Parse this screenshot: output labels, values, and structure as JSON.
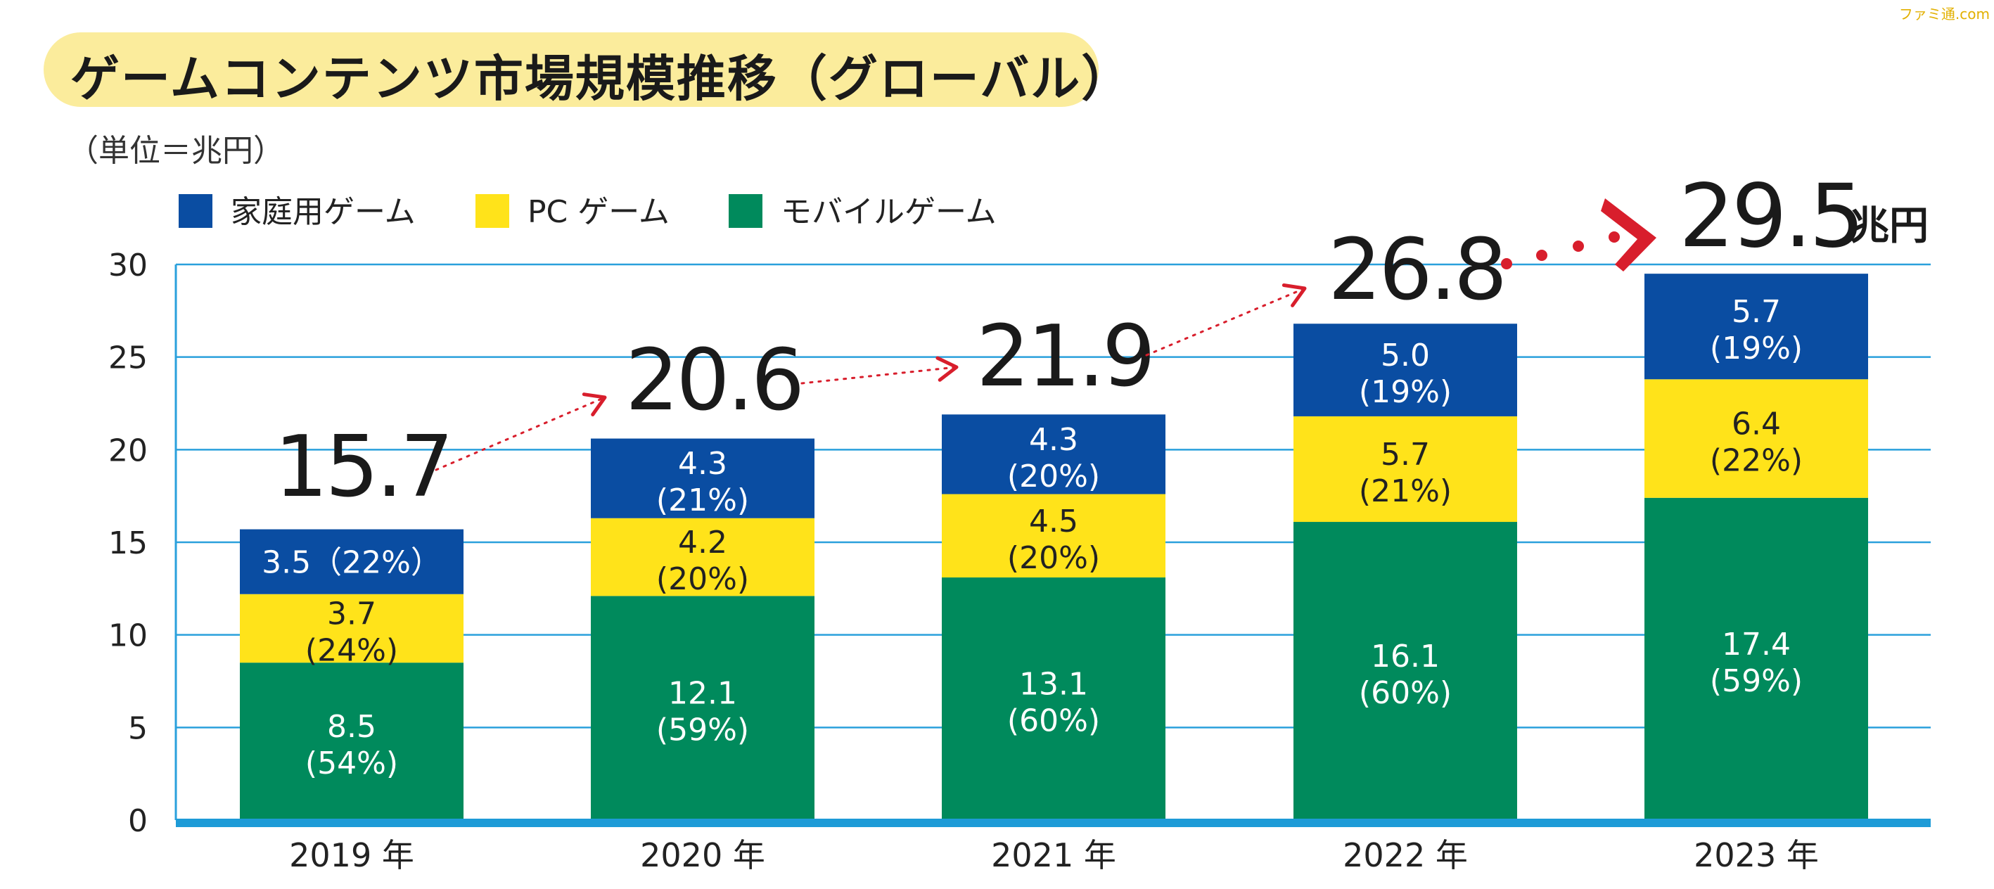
{
  "watermark": "ファミ通.com",
  "header": {
    "title": "ゲームコンテンツ市場規模推移（グローバル）",
    "unit_note": "（単位＝兆円）"
  },
  "colors": {
    "home": "#0a4da2",
    "pc": "#ffe31a",
    "mobile": "#008a5c",
    "grid": "#2aa0dc",
    "axis": "#1e9bd7",
    "arrow": "#d81e2c"
  },
  "chart_data": {
    "type": "bar",
    "stacked": true,
    "categories": [
      "2019 年",
      "2020 年",
      "2021 年",
      "2022 年",
      "2023 年"
    ],
    "series": [
      {
        "name": "モバイルゲーム",
        "key": "mobile",
        "values": [
          8.5,
          12.1,
          13.1,
          16.1,
          17.4
        ],
        "labels": [
          "8.5",
          "12.1",
          "13.1",
          "16.1",
          "17.4"
        ],
        "shares": [
          "(54%)",
          "(59%)",
          "(60%)",
          "(60%)",
          "(59%)"
        ]
      },
      {
        "name": "PC ゲーム",
        "key": "pc",
        "values": [
          3.7,
          4.2,
          4.5,
          5.7,
          6.4
        ],
        "labels": [
          "3.7",
          "4.2",
          "4.5",
          "5.7",
          "6.4"
        ],
        "shares": [
          "(24%)",
          "(20%)",
          "(20%)",
          "(21%)",
          "(22%)"
        ]
      },
      {
        "name": "家庭用ゲーム",
        "key": "home",
        "values": [
          3.5,
          4.3,
          4.3,
          5.0,
          5.7
        ],
        "labels": [
          "3.5",
          "4.3",
          "4.3",
          "5.0",
          "5.7"
        ],
        "shares": [
          "（22%）",
          "(21%)",
          "(20%)",
          "(19%)",
          "(19%)"
        ]
      }
    ],
    "legend_order": [
      "home",
      "pc",
      "mobile"
    ],
    "legend_placement": "top-left",
    "totals": [
      15.7,
      20.6,
      21.9,
      26.8,
      29.5
    ],
    "total_labels": [
      "15.7",
      "20.6",
      "21.9",
      "26.8",
      "29.5"
    ],
    "total_unit": "兆円",
    "y_ticks": [
      "0",
      "5",
      "10",
      "15",
      "20",
      "25",
      "30"
    ],
    "ylim": [
      0,
      30
    ],
    "grid": true
  }
}
